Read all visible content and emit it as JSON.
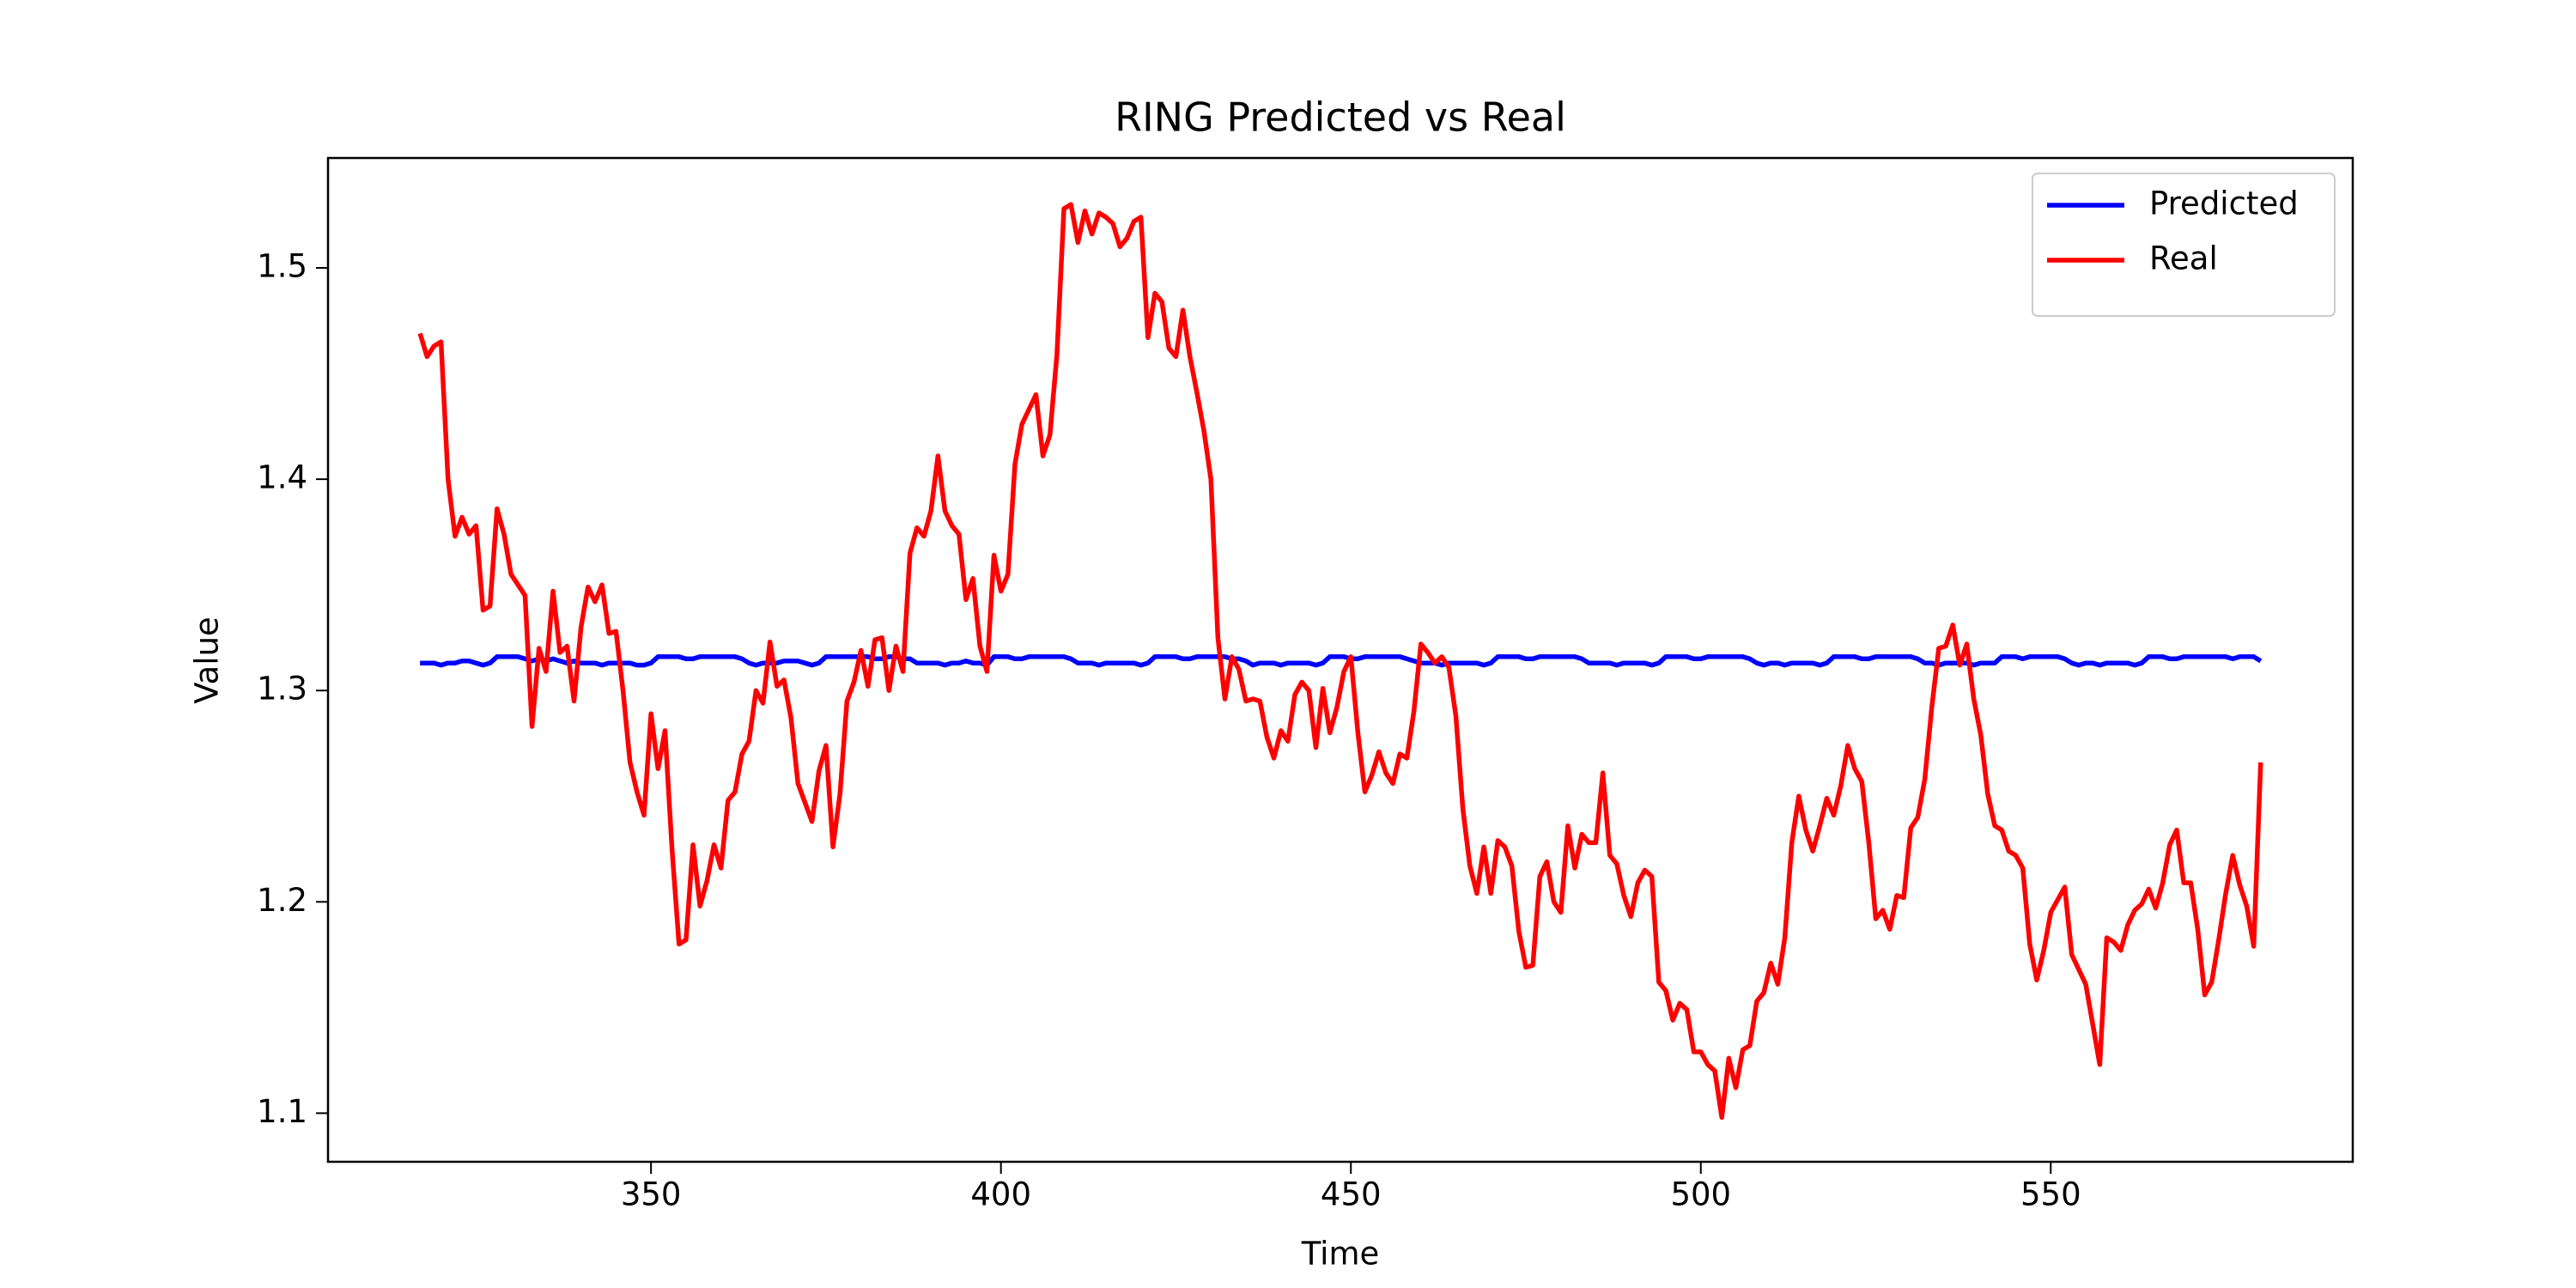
{
  "chart_data": {
    "type": "line",
    "title": "RING Predicted vs Real",
    "x_label": "Time",
    "y_label": "Value",
    "x": [
      317,
      318,
      319,
      320,
      321,
      322,
      323,
      324,
      325,
      326,
      327,
      328,
      329,
      330,
      331,
      332,
      333,
      334,
      335,
      336,
      337,
      338,
      339,
      340,
      341,
      342,
      343,
      344,
      345,
      346,
      347,
      348,
      349,
      350,
      351,
      352,
      353,
      354,
      355,
      356,
      357,
      358,
      359,
      360,
      361,
      362,
      363,
      364,
      365,
      366,
      367,
      368,
      369,
      370,
      371,
      372,
      373,
      374,
      375,
      376,
      377,
      378,
      379,
      380,
      381,
      382,
      383,
      384,
      385,
      386,
      387,
      388,
      389,
      390,
      391,
      392,
      393,
      394,
      395,
      396,
      397,
      398,
      399,
      400,
      401,
      402,
      403,
      404,
      405,
      406,
      407,
      408,
      409,
      410,
      411,
      412,
      413,
      414,
      415,
      416,
      417,
      418,
      419,
      420,
      421,
      422,
      423,
      424,
      425,
      426,
      427,
      428,
      429,
      430,
      431,
      432,
      433,
      434,
      435,
      436,
      437,
      438,
      439,
      440,
      441,
      442,
      443,
      444,
      445,
      446,
      447,
      448,
      449,
      450,
      451,
      452,
      453,
      454,
      455,
      456,
      457,
      458,
      459,
      460,
      461,
      462,
      463,
      464,
      465,
      466,
      467,
      468,
      469,
      470,
      471,
      472,
      473,
      474,
      475,
      476,
      477,
      478,
      479,
      480,
      481,
      482,
      483,
      484,
      485,
      486,
      487,
      488,
      489,
      490,
      491,
      492,
      493,
      494,
      495,
      496,
      497,
      498,
      499,
      500,
      501,
      502,
      503,
      504,
      505,
      506,
      507,
      508,
      509,
      510,
      511,
      512,
      513,
      514,
      515,
      516,
      517,
      518,
      519,
      520,
      521,
      522,
      523,
      524,
      525,
      526,
      527,
      528,
      529,
      530,
      531,
      532,
      533,
      534,
      535,
      536,
      537,
      538,
      539,
      540,
      541,
      542,
      543,
      544,
      545,
      546,
      547,
      548,
      549,
      550,
      551,
      552,
      553,
      554,
      555,
      556,
      557,
      558,
      559,
      560,
      561,
      562,
      563,
      564,
      565,
      566,
      567,
      568,
      569,
      570,
      571,
      572,
      573,
      574,
      575,
      576,
      577,
      578,
      579,
      580
    ],
    "series": [
      {
        "name": "Predicted",
        "color": "#0000ff",
        "values": [
          1.313,
          1.313,
          1.313,
          1.312,
          1.313,
          1.313,
          1.314,
          1.314,
          1.313,
          1.312,
          1.313,
          1.316,
          1.316,
          1.316,
          1.316,
          1.315,
          1.314,
          1.315,
          1.314,
          1.315,
          1.314,
          1.313,
          1.314,
          1.313,
          1.313,
          1.313,
          1.312,
          1.313,
          1.313,
          1.313,
          1.313,
          1.312,
          1.312,
          1.313,
          1.316,
          1.316,
          1.316,
          1.316,
          1.315,
          1.315,
          1.316,
          1.316,
          1.316,
          1.316,
          1.316,
          1.316,
          1.315,
          1.313,
          1.312,
          1.313,
          1.313,
          1.313,
          1.314,
          1.314,
          1.314,
          1.313,
          1.312,
          1.313,
          1.316,
          1.316,
          1.316,
          1.316,
          1.316,
          1.316,
          1.316,
          1.315,
          1.315,
          1.316,
          1.316,
          1.315,
          1.315,
          1.313,
          1.313,
          1.313,
          1.313,
          1.312,
          1.313,
          1.313,
          1.314,
          1.313,
          1.313,
          1.312,
          1.316,
          1.316,
          1.316,
          1.315,
          1.315,
          1.316,
          1.316,
          1.316,
          1.316,
          1.316,
          1.316,
          1.315,
          1.313,
          1.313,
          1.313,
          1.312,
          1.313,
          1.313,
          1.313,
          1.313,
          1.313,
          1.312,
          1.313,
          1.316,
          1.316,
          1.316,
          1.316,
          1.315,
          1.315,
          1.316,
          1.316,
          1.316,
          1.316,
          1.316,
          1.315,
          1.315,
          1.314,
          1.312,
          1.313,
          1.313,
          1.313,
          1.312,
          1.313,
          1.313,
          1.313,
          1.313,
          1.312,
          1.313,
          1.316,
          1.316,
          1.316,
          1.315,
          1.315,
          1.316,
          1.316,
          1.316,
          1.316,
          1.316,
          1.316,
          1.315,
          1.314,
          1.313,
          1.313,
          1.313,
          1.312,
          1.313,
          1.313,
          1.313,
          1.313,
          1.313,
          1.312,
          1.313,
          1.316,
          1.316,
          1.316,
          1.316,
          1.315,
          1.315,
          1.316,
          1.316,
          1.316,
          1.316,
          1.316,
          1.316,
          1.315,
          1.313,
          1.313,
          1.313,
          1.313,
          1.312,
          1.313,
          1.313,
          1.313,
          1.313,
          1.312,
          1.313,
          1.316,
          1.316,
          1.316,
          1.316,
          1.315,
          1.315,
          1.316,
          1.316,
          1.316,
          1.316,
          1.316,
          1.316,
          1.315,
          1.313,
          1.312,
          1.313,
          1.313,
          1.312,
          1.313,
          1.313,
          1.313,
          1.313,
          1.312,
          1.313,
          1.316,
          1.316,
          1.316,
          1.316,
          1.315,
          1.315,
          1.316,
          1.316,
          1.316,
          1.316,
          1.316,
          1.316,
          1.315,
          1.313,
          1.313,
          1.312,
          1.313,
          1.313,
          1.313,
          1.313,
          1.312,
          1.313,
          1.313,
          1.313,
          1.316,
          1.316,
          1.316,
          1.315,
          1.316,
          1.316,
          1.316,
          1.316,
          1.316,
          1.315,
          1.313,
          1.312,
          1.313,
          1.313,
          1.312,
          1.313,
          1.313,
          1.313,
          1.313,
          1.312,
          1.313,
          1.316,
          1.316,
          1.316,
          1.315,
          1.315,
          1.316,
          1.316,
          1.316,
          1.316,
          1.316,
          1.316,
          1.316,
          1.315,
          1.316,
          1.316,
          1.316,
          1.314
        ]
      },
      {
        "name": "Real",
        "color": "#ff0000",
        "values": [
          1.469,
          1.458,
          1.463,
          1.465,
          1.4,
          1.373,
          1.382,
          1.374,
          1.378,
          1.338,
          1.34,
          1.386,
          1.374,
          1.355,
          1.35,
          1.345,
          1.283,
          1.32,
          1.309,
          1.347,
          1.318,
          1.321,
          1.295,
          1.33,
          1.349,
          1.342,
          1.35,
          1.327,
          1.328,
          1.3,
          1.266,
          1.252,
          1.241,
          1.289,
          1.263,
          1.281,
          1.225,
          1.18,
          1.182,
          1.227,
          1.198,
          1.21,
          1.227,
          1.216,
          1.248,
          1.252,
          1.27,
          1.276,
          1.3,
          1.294,
          1.323,
          1.302,
          1.305,
          1.287,
          1.256,
          1.247,
          1.238,
          1.262,
          1.274,
          1.226,
          1.251,
          1.295,
          1.304,
          1.319,
          1.302,
          1.324,
          1.325,
          1.3,
          1.321,
          1.309,
          1.365,
          1.377,
          1.373,
          1.385,
          1.411,
          1.385,
          1.378,
          1.374,
          1.343,
          1.353,
          1.321,
          1.309,
          1.364,
          1.347,
          1.355,
          1.407,
          1.426,
          1.433,
          1.44,
          1.411,
          1.421,
          1.459,
          1.528,
          1.53,
          1.512,
          1.527,
          1.516,
          1.526,
          1.524,
          1.521,
          1.51,
          1.514,
          1.522,
          1.524,
          1.467,
          1.488,
          1.484,
          1.462,
          1.458,
          1.48,
          1.458,
          1.441,
          1.423,
          1.4,
          1.325,
          1.296,
          1.316,
          1.31,
          1.295,
          1.296,
          1.295,
          1.278,
          1.268,
          1.281,
          1.276,
          1.298,
          1.304,
          1.3,
          1.273,
          1.301,
          1.28,
          1.292,
          1.309,
          1.316,
          1.28,
          1.252,
          1.26,
          1.271,
          1.261,
          1.256,
          1.27,
          1.268,
          1.29,
          1.322,
          1.318,
          1.313,
          1.316,
          1.311,
          1.288,
          1.244,
          1.217,
          1.204,
          1.226,
          1.204,
          1.229,
          1.226,
          1.217,
          1.186,
          1.169,
          1.17,
          1.212,
          1.219,
          1.2,
          1.195,
          1.236,
          1.216,
          1.232,
          1.228,
          1.228,
          1.261,
          1.222,
          1.218,
          1.203,
          1.193,
          1.209,
          1.215,
          1.212,
          1.162,
          1.158,
          1.144,
          1.152,
          1.149,
          1.129,
          1.129,
          1.123,
          1.12,
          1.098,
          1.126,
          1.112,
          1.13,
          1.132,
          1.153,
          1.157,
          1.171,
          1.161,
          1.183,
          1.228,
          1.25,
          1.234,
          1.224,
          1.236,
          1.249,
          1.241,
          1.255,
          1.274,
          1.263,
          1.257,
          1.228,
          1.192,
          1.196,
          1.187,
          1.203,
          1.202,
          1.235,
          1.24,
          1.258,
          1.292,
          1.32,
          1.321,
          1.331,
          1.312,
          1.322,
          1.296,
          1.279,
          1.251,
          1.236,
          1.234,
          1.224,
          1.222,
          1.216,
          1.18,
          1.163,
          1.177,
          1.195,
          1.201,
          1.207,
          1.175,
          1.168,
          1.161,
          1.142,
          1.123,
          1.183,
          1.181,
          1.177,
          1.189,
          1.196,
          1.199,
          1.206,
          1.197,
          1.209,
          1.227,
          1.234,
          1.209,
          1.209,
          1.187,
          1.156,
          1.162,
          1.182,
          1.204,
          1.222,
          1.208,
          1.198,
          1.179,
          1.266
        ]
      }
    ],
    "xlim": [
      303.85,
      593.15
    ],
    "ylim": [
      1.077,
      1.552
    ],
    "xticks": [
      350,
      400,
      450,
      500,
      550
    ],
    "yticks": [
      1.1,
      1.2,
      1.3,
      1.4,
      1.5
    ],
    "legend": "upper right",
    "grid": false
  }
}
